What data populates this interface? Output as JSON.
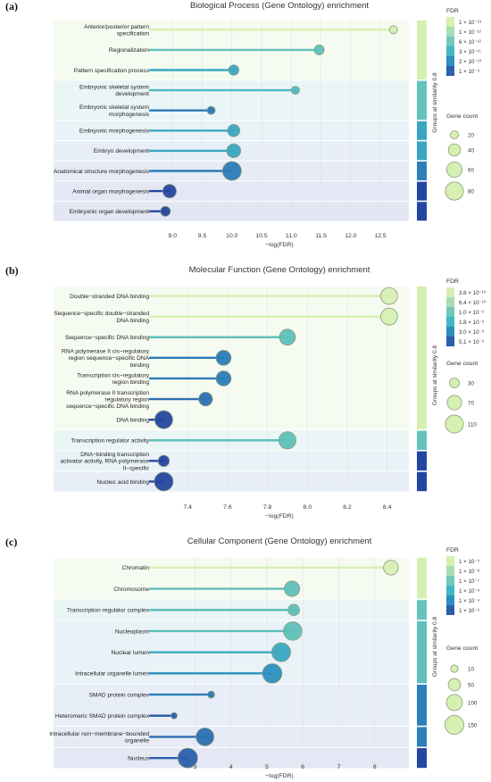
{
  "chart_data": [
    {
      "type": "lollipop",
      "panel_label": "(a)",
      "title": "Biological Process (Gene Ontology) enrichment",
      "xlabel": "−log(FDR)",
      "xlim": [
        8.65,
        12.95
      ],
      "xticks": [
        "9.0",
        "9.5",
        "10.0",
        "10.5",
        "11.0",
        "11.5",
        "12.0",
        "12.5"
      ],
      "terms": [
        {
          "label": "Anterior/posterior pattern specification",
          "value": 12.72,
          "gene_count": 20,
          "group": 1,
          "color": "#d6f0b2"
        },
        {
          "label": "Regionalization",
          "value": 11.47,
          "gene_count": 28,
          "group": 1,
          "color": "#5fc0bb"
        },
        {
          "label": "Pattern specification process",
          "value": 10.03,
          "gene_count": 30,
          "group": 1,
          "color": "#3aa8c1"
        },
        {
          "label": "Embryonic skeletal system development",
          "value": 11.07,
          "gene_count": 16,
          "group": 2,
          "color": "#4fb8c0"
        },
        {
          "label": "Embryonic skeletal system morphogenesis",
          "value": 9.65,
          "gene_count": 8,
          "group": 2,
          "color": "#2b7bb6"
        },
        {
          "label": "Embryonic morphogenesis",
          "value": 10.03,
          "gene_count": 40,
          "group": 3,
          "color": "#3aa8c1"
        },
        {
          "label": "Embryo development",
          "value": 10.03,
          "gene_count": 50,
          "group": 4,
          "color": "#3aa8c1"
        },
        {
          "label": "Anatomical structure morphogenesis",
          "value": 10.0,
          "gene_count": 85,
          "group": 5,
          "color": "#2b7bb6"
        },
        {
          "label": "Animal organ morphogenesis",
          "value": 8.95,
          "gene_count": 48,
          "group": 6,
          "color": "#2546a0"
        },
        {
          "label": "Embryonic organ development",
          "value": 8.88,
          "gene_count": 28,
          "group": 7,
          "color": "#2546a0"
        }
      ],
      "groups": [
        {
          "id": 1,
          "color": "#d6f0b2"
        },
        {
          "id": 2,
          "color": "#63c3bd"
        },
        {
          "id": 3,
          "color": "#3aa7c2"
        },
        {
          "id": 4,
          "color": "#3aa7c2"
        },
        {
          "id": 5,
          "color": "#2c7fb8"
        },
        {
          "id": 6,
          "color": "#2546a0"
        },
        {
          "id": 7,
          "color": "#2546a0"
        }
      ],
      "legend": {
        "fdr_title": "FDR",
        "fdr_entries": [
          {
            "label": "1 × 10⁻¹³",
            "color": "#d6f0b2"
          },
          {
            "label": "1 × 10⁻¹²",
            "color": "#a9dcb5"
          },
          {
            "label": "6 × 10⁻¹²",
            "color": "#72c8bc"
          },
          {
            "label": "3 × 10⁻¹¹",
            "color": "#41b6c4"
          },
          {
            "label": "2 × 10⁻¹⁰",
            "color": "#2c8fbe"
          },
          {
            "label": "1 × 10⁻⁹",
            "color": "#2b5fac"
          }
        ],
        "gene_title": "Gene count",
        "gene_entries": [
          20,
          40,
          60,
          80
        ],
        "group_label": "Groups at similarity 0.8"
      }
    },
    {
      "type": "lollipop",
      "panel_label": "(b)",
      "title": "Molecular Function (Gene Ontology) enrichment",
      "xlabel": "−log(FDR)",
      "xlim": [
        7.22,
        8.5
      ],
      "xticks": [
        "7.4",
        "7.6",
        "7.8",
        "8.0",
        "8.2",
        "8.4"
      ],
      "terms": [
        {
          "label": "Double−stranded DNA binding",
          "value": 8.41,
          "gene_count": 95,
          "group": 1,
          "color": "#d6f0b2"
        },
        {
          "label": "Sequence−specific double−stranded DNA binding",
          "value": 8.41,
          "gene_count": 95,
          "group": 1,
          "color": "#d6f0b2"
        },
        {
          "label": "Sequence−specific DNA binding",
          "value": 7.9,
          "gene_count": 85,
          "group": 1,
          "color": "#5ec0bb"
        },
        {
          "label": "RNA polymerase II cis−regulatory region sequence−specific DNA binding",
          "value": 7.58,
          "gene_count": 75,
          "group": 1,
          "color": "#2b7bb6"
        },
        {
          "label": "Transcription cis−regulatory region binding",
          "value": 7.58,
          "gene_count": 75,
          "group": 1,
          "color": "#2b7bb6"
        },
        {
          "label": "RNA polymerase II transcription regulatory region sequence−specific DNA binding",
          "value": 7.49,
          "gene_count": 62,
          "group": 1,
          "color": "#2b6fb0"
        },
        {
          "label": "DNA binding",
          "value": 7.28,
          "gene_count": 110,
          "group": 1,
          "color": "#2546a0"
        },
        {
          "label": "Transcription regulator activity",
          "value": 7.9,
          "gene_count": 100,
          "group": 2,
          "color": "#5ec0bb"
        },
        {
          "label": "DNA−binding transcription activator activity, RNA polymerase II−specific",
          "value": 7.28,
          "gene_count": 40,
          "group": 3,
          "color": "#2546a0"
        },
        {
          "label": "Nucleic acid binding",
          "value": 7.28,
          "gene_count": 120,
          "group": 4,
          "color": "#2546a0"
        }
      ],
      "groups": [
        {
          "id": 1,
          "color": "#d6f0b2"
        },
        {
          "id": 2,
          "color": "#63c3bd"
        },
        {
          "id": 3,
          "color": "#2546a0"
        },
        {
          "id": 4,
          "color": "#2546a0"
        }
      ],
      "legend": {
        "fdr_title": "FDR",
        "fdr_entries": [
          {
            "label": "3.8 × 10⁻¹⁰",
            "color": "#d6f0b2"
          },
          {
            "label": "6.4 × 10⁻¹⁰",
            "color": "#a9dcb5"
          },
          {
            "label": "1.0 × 10⁻⁹",
            "color": "#72c8bc"
          },
          {
            "label": "1.8 × 10⁻⁹",
            "color": "#41b6c4"
          },
          {
            "label": "3.0 × 10⁻⁹",
            "color": "#2c8fbe"
          },
          {
            "label": "5.1 × 10⁻⁹",
            "color": "#2b5fac"
          }
        ],
        "gene_title": "Gene count",
        "gene_entries": [
          30,
          70,
          110
        ],
        "group_label": "Groups at similarity 0.8"
      }
    },
    {
      "type": "lollipop",
      "panel_label": "(c)",
      "title": "Cellular Component (Gene Ontology) enrichment",
      "xlabel": "−log(FDR)",
      "xlim": [
        1.8,
        8.9
      ],
      "xticks": [
        "3",
        "4",
        "5",
        "6",
        "7",
        "8"
      ],
      "terms": [
        {
          "label": "Chromatin",
          "value": 8.45,
          "gene_count": 80,
          "group": 1,
          "color": "#d6f0b2"
        },
        {
          "label": "Chromosome",
          "value": 5.7,
          "gene_count": 90,
          "group": 1,
          "color": "#5ec0bb"
        },
        {
          "label": "Transcription regulator complex",
          "value": 5.75,
          "gene_count": 40,
          "group": 2,
          "color": "#5ec0bb"
        },
        {
          "label": "Nucleoplasm",
          "value": 5.72,
          "gene_count": 140,
          "group": 3,
          "color": "#5ec0bb"
        },
        {
          "label": "Nuclear lumen",
          "value": 5.4,
          "gene_count": 150,
          "group": 3,
          "color": "#3aa8c1"
        },
        {
          "label": "Intracellular organelle lumen",
          "value": 5.15,
          "gene_count": 160,
          "group": 3,
          "color": "#2c8fbe"
        },
        {
          "label": "SMAD protein complex",
          "value": 3.45,
          "gene_count": 8,
          "group": 4,
          "color": "#2b7bb6"
        },
        {
          "label": "Heteromeric SMAD protein complex",
          "value": 2.42,
          "gene_count": 5,
          "group": 4,
          "color": "#2b5fac"
        },
        {
          "label": "Intracellular non−membrane−bounded organelle",
          "value": 3.28,
          "gene_count": 130,
          "group": 5,
          "color": "#2b6fb0"
        },
        {
          "label": "Nucleus",
          "value": 2.8,
          "gene_count": 165,
          "group": 6,
          "color": "#2b5fac"
        }
      ],
      "groups": [
        {
          "id": 1,
          "color": "#d6f0b2"
        },
        {
          "id": 2,
          "color": "#63c3bd"
        },
        {
          "id": 3,
          "color": "#5ebfbb"
        },
        {
          "id": 4,
          "color": "#2c7fb8"
        },
        {
          "id": 5,
          "color": "#2c7fb8"
        },
        {
          "id": 6,
          "color": "#2546a0"
        }
      ],
      "legend": {
        "fdr_title": "FDR",
        "fdr_entries": [
          {
            "label": "1 × 10⁻⁹",
            "color": "#d6f0b2"
          },
          {
            "label": "1 × 10⁻⁸",
            "color": "#a9dcb5"
          },
          {
            "label": "1 × 10⁻⁷",
            "color": "#72c8bc"
          },
          {
            "label": "1 × 10⁻⁵",
            "color": "#41b6c4"
          },
          {
            "label": "1 × 10⁻⁴",
            "color": "#2c8fbe"
          },
          {
            "label": "1 × 10⁻³",
            "color": "#2b5fac"
          }
        ],
        "gene_title": "Gene count",
        "gene_entries": [
          10,
          50,
          100,
          150
        ],
        "group_label": "Groups at similarity 0.8"
      }
    }
  ]
}
